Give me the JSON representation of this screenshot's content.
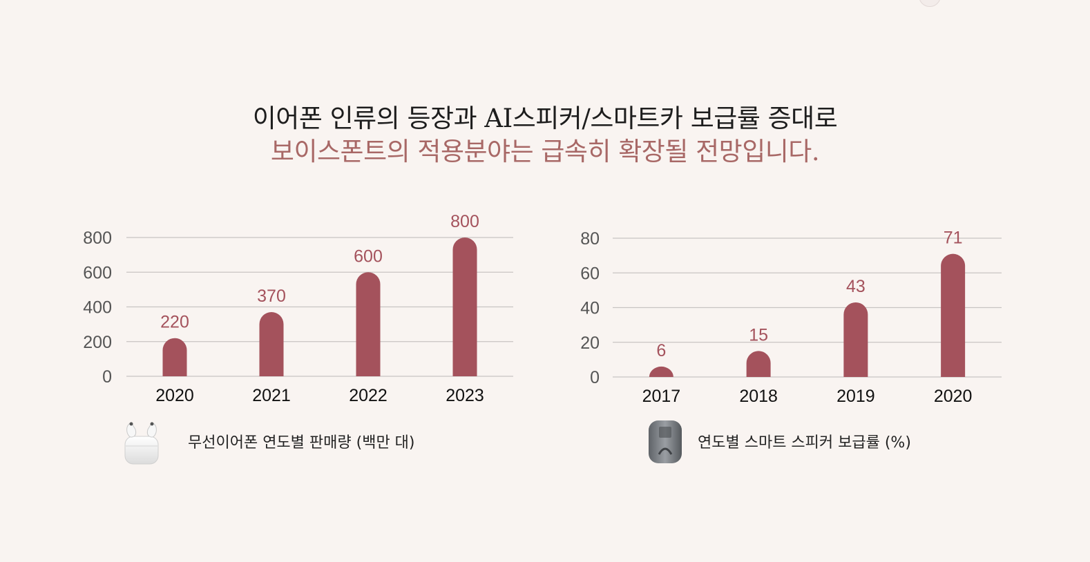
{
  "headline": {
    "line1": "이어폰 인류의 등장과 AI스피커/스마트카 보급률 증대로",
    "line2": "보이스폰트의 적용분야는 급속히 확장될 전망입니다."
  },
  "colors": {
    "bar": "#a4525c",
    "accent_text": "#a86866",
    "grid": "#c8c4c2"
  },
  "chart_data": [
    {
      "type": "bar",
      "title": "무선이어폰 연도별 판매량 (백만 대)",
      "categories": [
        "2020",
        "2021",
        "2022",
        "2023"
      ],
      "values": [
        220,
        370,
        600,
        800
      ],
      "data_labels": [
        "220",
        "370",
        "600",
        "800"
      ],
      "yticks": [
        "0",
        "200",
        "400",
        "600",
        "800"
      ],
      "ylim": [
        0,
        800
      ],
      "grid": true,
      "icon": "earbuds-case-icon"
    },
    {
      "type": "bar",
      "title": "연도별 스마트 스피커 보급률 (%)",
      "categories": [
        "2017",
        "2018",
        "2019",
        "2020"
      ],
      "values": [
        6,
        15,
        43,
        71
      ],
      "data_labels": [
        "6",
        "15",
        "43",
        "71"
      ],
      "yticks": [
        "0",
        "20",
        "40",
        "60",
        "80"
      ],
      "ylim": [
        0,
        80
      ],
      "grid": true,
      "icon": "smart-speaker-icon"
    }
  ]
}
